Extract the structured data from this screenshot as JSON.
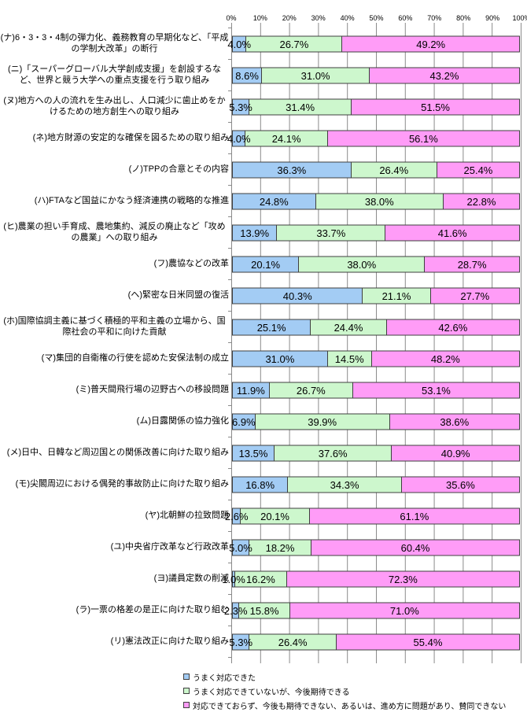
{
  "chart_data": {
    "type": "bar",
    "orientation": "horizontal",
    "stacked": true,
    "normalized_to_100": true,
    "x_axis": {
      "ticks": [
        "0%",
        "10%",
        "20%",
        "30%",
        "40%",
        "50%",
        "60%",
        "70%",
        "80%",
        "90%",
        "100%"
      ],
      "range": [
        0,
        100
      ],
      "grid": true,
      "position": "top"
    },
    "legend_position": "bottom",
    "series": [
      {
        "name": "うまく対応できた",
        "color": "#a3ccf4"
      },
      {
        "name": "うまく対応できていないが、今後期待できる",
        "color": "#cdf7cd"
      },
      {
        "name": "対応できておらず、今後も期待できない、あるいは、進め方に問題があり、賛同できない",
        "color": "#ff9cf7"
      }
    ],
    "categories": [
      "(ナ)6・3・3・4制の弾力化、義務教育の早期化など、「平成の学制大改革」の断行",
      "(ニ)「スーパーグローバル大学創成支援」を創設するなど、世界と競う大学への重点支援を行う取り組み",
      "(ヌ)地方への人の流れを生み出し、人口減少に歯止めをかけるための地方創生への取り組み",
      "(ネ)地方財源の安定的な確保を図るための取り組み",
      "(ノ)TPPの合意とその内容",
      "(ハ)FTAなど国益にかなう経済連携の戦略的な推進",
      "(ヒ)農業の担い手育成、農地集約、減反の廃止など「攻めの農業」への取り組み",
      "(フ)農協などの改革",
      "(ヘ)緊密な日米同盟の復活",
      "(ホ)国際協調主義に基づく積極的平和主義の立場から、国際社会の平和に向けた貢献",
      "(マ)集団的自衛権の行使を認めた安保法制の成立",
      "(ミ)普天間飛行場の辺野古への移設問題",
      "(ム)日露関係の協力強化",
      "(メ)日中、日韓など周辺国との関係改善に向けた取り組み",
      "(モ)尖閣周辺における偶発的事故防止に向けた取り組み",
      "(ヤ)北朝鮮の拉致問題",
      "(ユ)中央省庁改革など行政改革",
      "(ヨ)議員定数の削減",
      "(ラ)一票の格差の是正に向けた取り組む",
      "(リ)憲法改正に向けた取り組み"
    ],
    "values": [
      [
        4.0,
        26.7,
        49.2
      ],
      [
        8.6,
        31.0,
        43.2
      ],
      [
        5.3,
        31.4,
        51.5
      ],
      [
        4.0,
        24.1,
        56.1
      ],
      [
        36.3,
        26.4,
        25.4
      ],
      [
        24.8,
        38.0,
        22.8
      ],
      [
        13.9,
        33.7,
        41.6
      ],
      [
        20.1,
        38.0,
        28.7
      ],
      [
        40.3,
        21.1,
        27.7
      ],
      [
        25.1,
        24.4,
        42.6
      ],
      [
        31.0,
        14.5,
        48.2
      ],
      [
        11.9,
        26.7,
        53.1
      ],
      [
        6.9,
        39.9,
        38.6
      ],
      [
        13.5,
        37.6,
        40.9
      ],
      [
        16.8,
        34.3,
        35.6
      ],
      [
        2.6,
        20.1,
        61.1
      ],
      [
        5.0,
        18.2,
        60.4
      ],
      [
        1.0,
        16.2,
        72.3
      ],
      [
        2.3,
        15.8,
        71.0
      ],
      [
        5.3,
        26.4,
        55.4
      ]
    ],
    "value_label_suffix": "%",
    "grid_color": "#8a8a8a",
    "segment_border_color": "#3f3f3f"
  }
}
